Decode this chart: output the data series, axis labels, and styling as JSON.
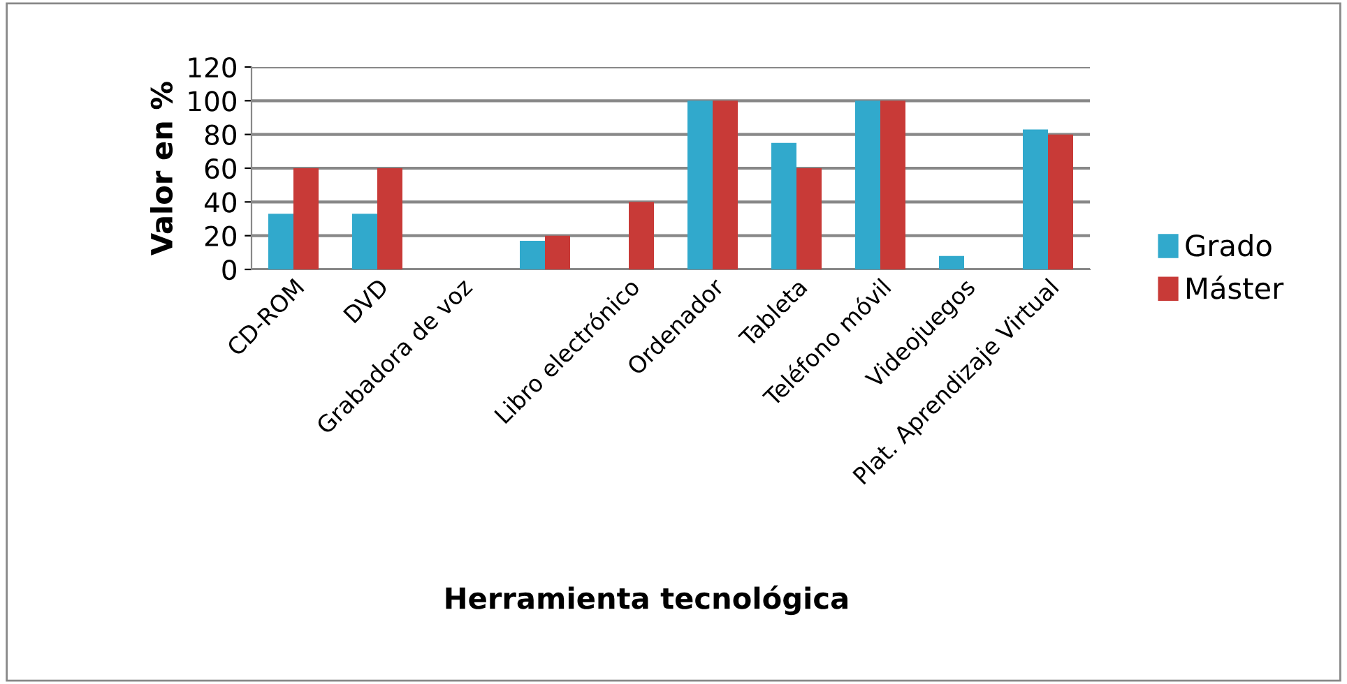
{
  "chart_data": {
    "type": "bar",
    "xlabel": "Herramienta tecnológica",
    "ylabel": "Valor en %",
    "categories": [
      "CD-ROM",
      "DVD",
      "Grabadora de voz",
      null,
      "Libro electrónico",
      "Ordenador",
      "Tableta",
      "Teléfono móvil",
      "Videojuegos",
      "Plat. Aprendizaje Virtual"
    ],
    "series": [
      {
        "name": "Grado",
        "color": "#31a9cc",
        "values": [
          33,
          33,
          0,
          17,
          0,
          100,
          75,
          100,
          8,
          83
        ]
      },
      {
        "name": "Máster",
        "color": "#c83a37",
        "values": [
          60,
          60,
          0,
          20,
          40,
          100,
          60,
          100,
          0,
          80
        ]
      }
    ],
    "ylim": [
      0,
      120
    ],
    "yticks": [
      0,
      20,
      40,
      60,
      80,
      100,
      120
    ],
    "grid": "y",
    "legend": "right"
  }
}
